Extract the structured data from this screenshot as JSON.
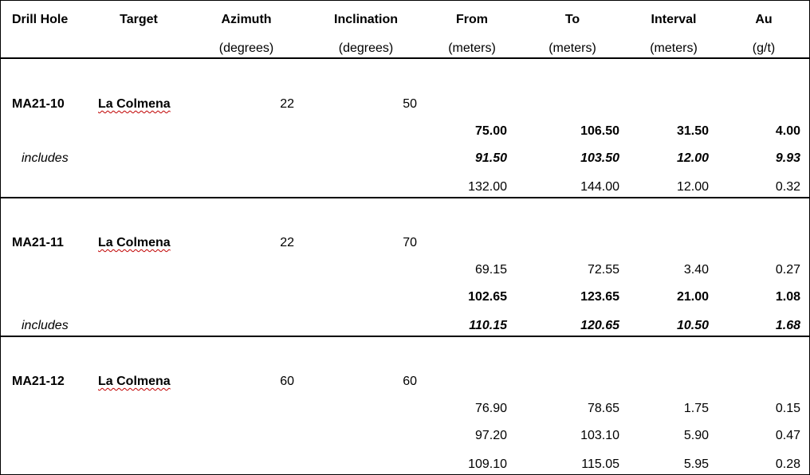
{
  "headers": [
    {
      "title": "Drill Hole",
      "unit": ""
    },
    {
      "title": "Target",
      "unit": ""
    },
    {
      "title": "Azimuth",
      "unit": "(degrees)"
    },
    {
      "title": "Inclination",
      "unit": "(degrees)"
    },
    {
      "title": "From",
      "unit": "(meters)"
    },
    {
      "title": "To",
      "unit": "(meters)"
    },
    {
      "title": "Interval",
      "unit": "(meters)"
    },
    {
      "title": "Au",
      "unit": "(g/t)"
    }
  ],
  "includes_label": "includes",
  "holes": [
    {
      "hole": "MA21-10",
      "target": "La Colmena",
      "azimuth": "22",
      "inclination": "50",
      "intervals": [
        {
          "from": "75.00",
          "to": "106.50",
          "interval": "31.50",
          "au": "4.00",
          "style": "bold",
          "includes": false
        },
        {
          "from": "91.50",
          "to": "103.50",
          "interval": "12.00",
          "au": "9.93",
          "style": "bold-italic",
          "includes": true
        },
        {
          "from": "132.00",
          "to": "144.00",
          "interval": "12.00",
          "au": "0.32",
          "style": "normal",
          "includes": false
        }
      ]
    },
    {
      "hole": "MA21-11",
      "target": "La Colmena",
      "azimuth": "22",
      "inclination": "70",
      "intervals": [
        {
          "from": "69.15",
          "to": "72.55",
          "interval": "3.40",
          "au": "0.27",
          "style": "normal",
          "includes": false
        },
        {
          "from": "102.65",
          "to": "123.65",
          "interval": "21.00",
          "au": "1.08",
          "style": "bold",
          "includes": false
        },
        {
          "from": "110.15",
          "to": "120.65",
          "interval": "10.50",
          "au": "1.68",
          "style": "bold-italic",
          "includes": true
        }
      ]
    },
    {
      "hole": "MA21-12",
      "target": "La Colmena",
      "azimuth": "60",
      "inclination": "60",
      "intervals": [
        {
          "from": "76.90",
          "to": "78.65",
          "interval": "1.75",
          "au": "0.15",
          "style": "normal",
          "includes": false
        },
        {
          "from": "97.20",
          "to": "103.10",
          "interval": "5.90",
          "au": "0.47",
          "style": "normal",
          "includes": false
        },
        {
          "from": "109.10",
          "to": "115.05",
          "interval": "5.95",
          "au": "0.28",
          "style": "normal",
          "includes": false
        }
      ]
    }
  ]
}
